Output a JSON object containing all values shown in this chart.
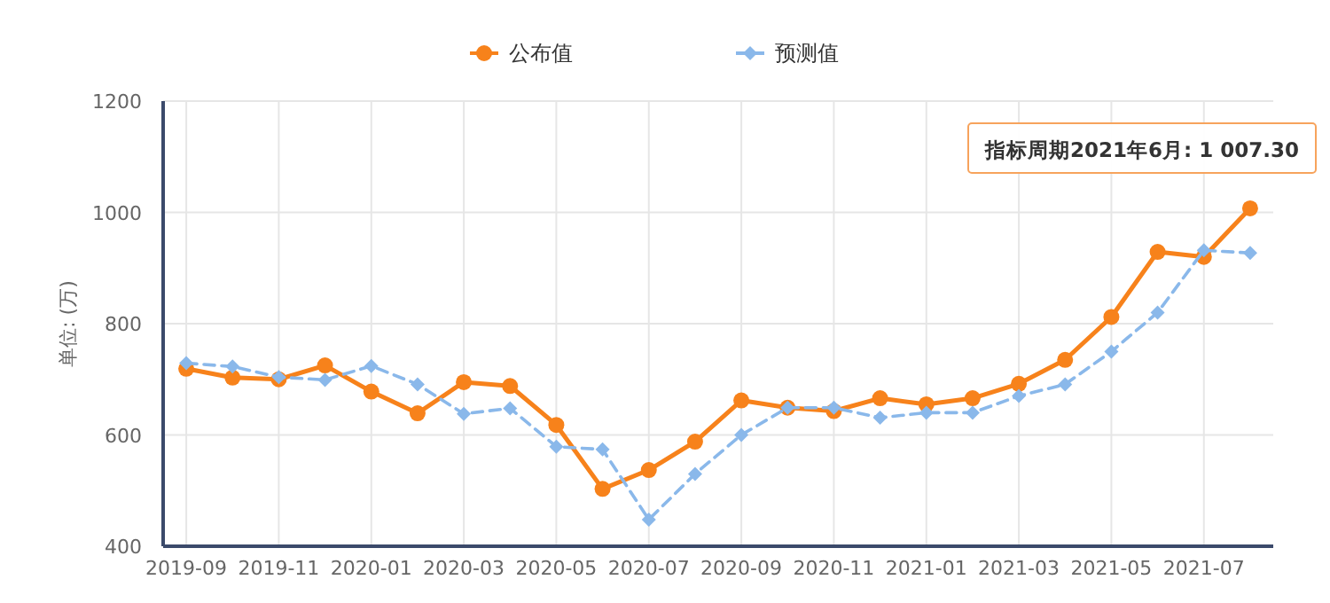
{
  "chart_data": {
    "type": "line",
    "ylabel": "单位: (万)",
    "categories": [
      "2019-09",
      null,
      "2019-11",
      null,
      "2020-01",
      null,
      "2020-03",
      null,
      "2020-05",
      null,
      "2020-07",
      null,
      "2020-09",
      null,
      "2020-11",
      null,
      "2021-01",
      null,
      "2021-03",
      null,
      "2021-05",
      null,
      "2021-07",
      null
    ],
    "series": [
      {
        "name": "公布值",
        "color": "#f7821b",
        "marker": "circle",
        "line_style": "solid",
        "values": [
          719,
          703,
          700,
          725,
          678,
          639,
          695,
          688,
          618,
          503,
          537,
          588,
          662,
          649,
          643,
          666,
          655,
          666,
          692,
          735,
          812,
          929,
          920,
          1007.3
        ]
      },
      {
        "name": "预测值",
        "color": "#8ab8ea",
        "marker": "diamond",
        "line_style": "dashed",
        "values": [
          729,
          723,
          704,
          699,
          724,
          691,
          638,
          648,
          579,
          574,
          448,
          530,
          600,
          649,
          649,
          631,
          640,
          640,
          670,
          691,
          750,
          820,
          932,
          927
        ]
      }
    ],
    "ylim": [
      400,
      1200
    ],
    "yticks": [
      400,
      600,
      800,
      1000,
      1200
    ],
    "grid": true,
    "legend": "top",
    "annotations": [
      "指标周期2021年6月: 1 007.30"
    ]
  }
}
